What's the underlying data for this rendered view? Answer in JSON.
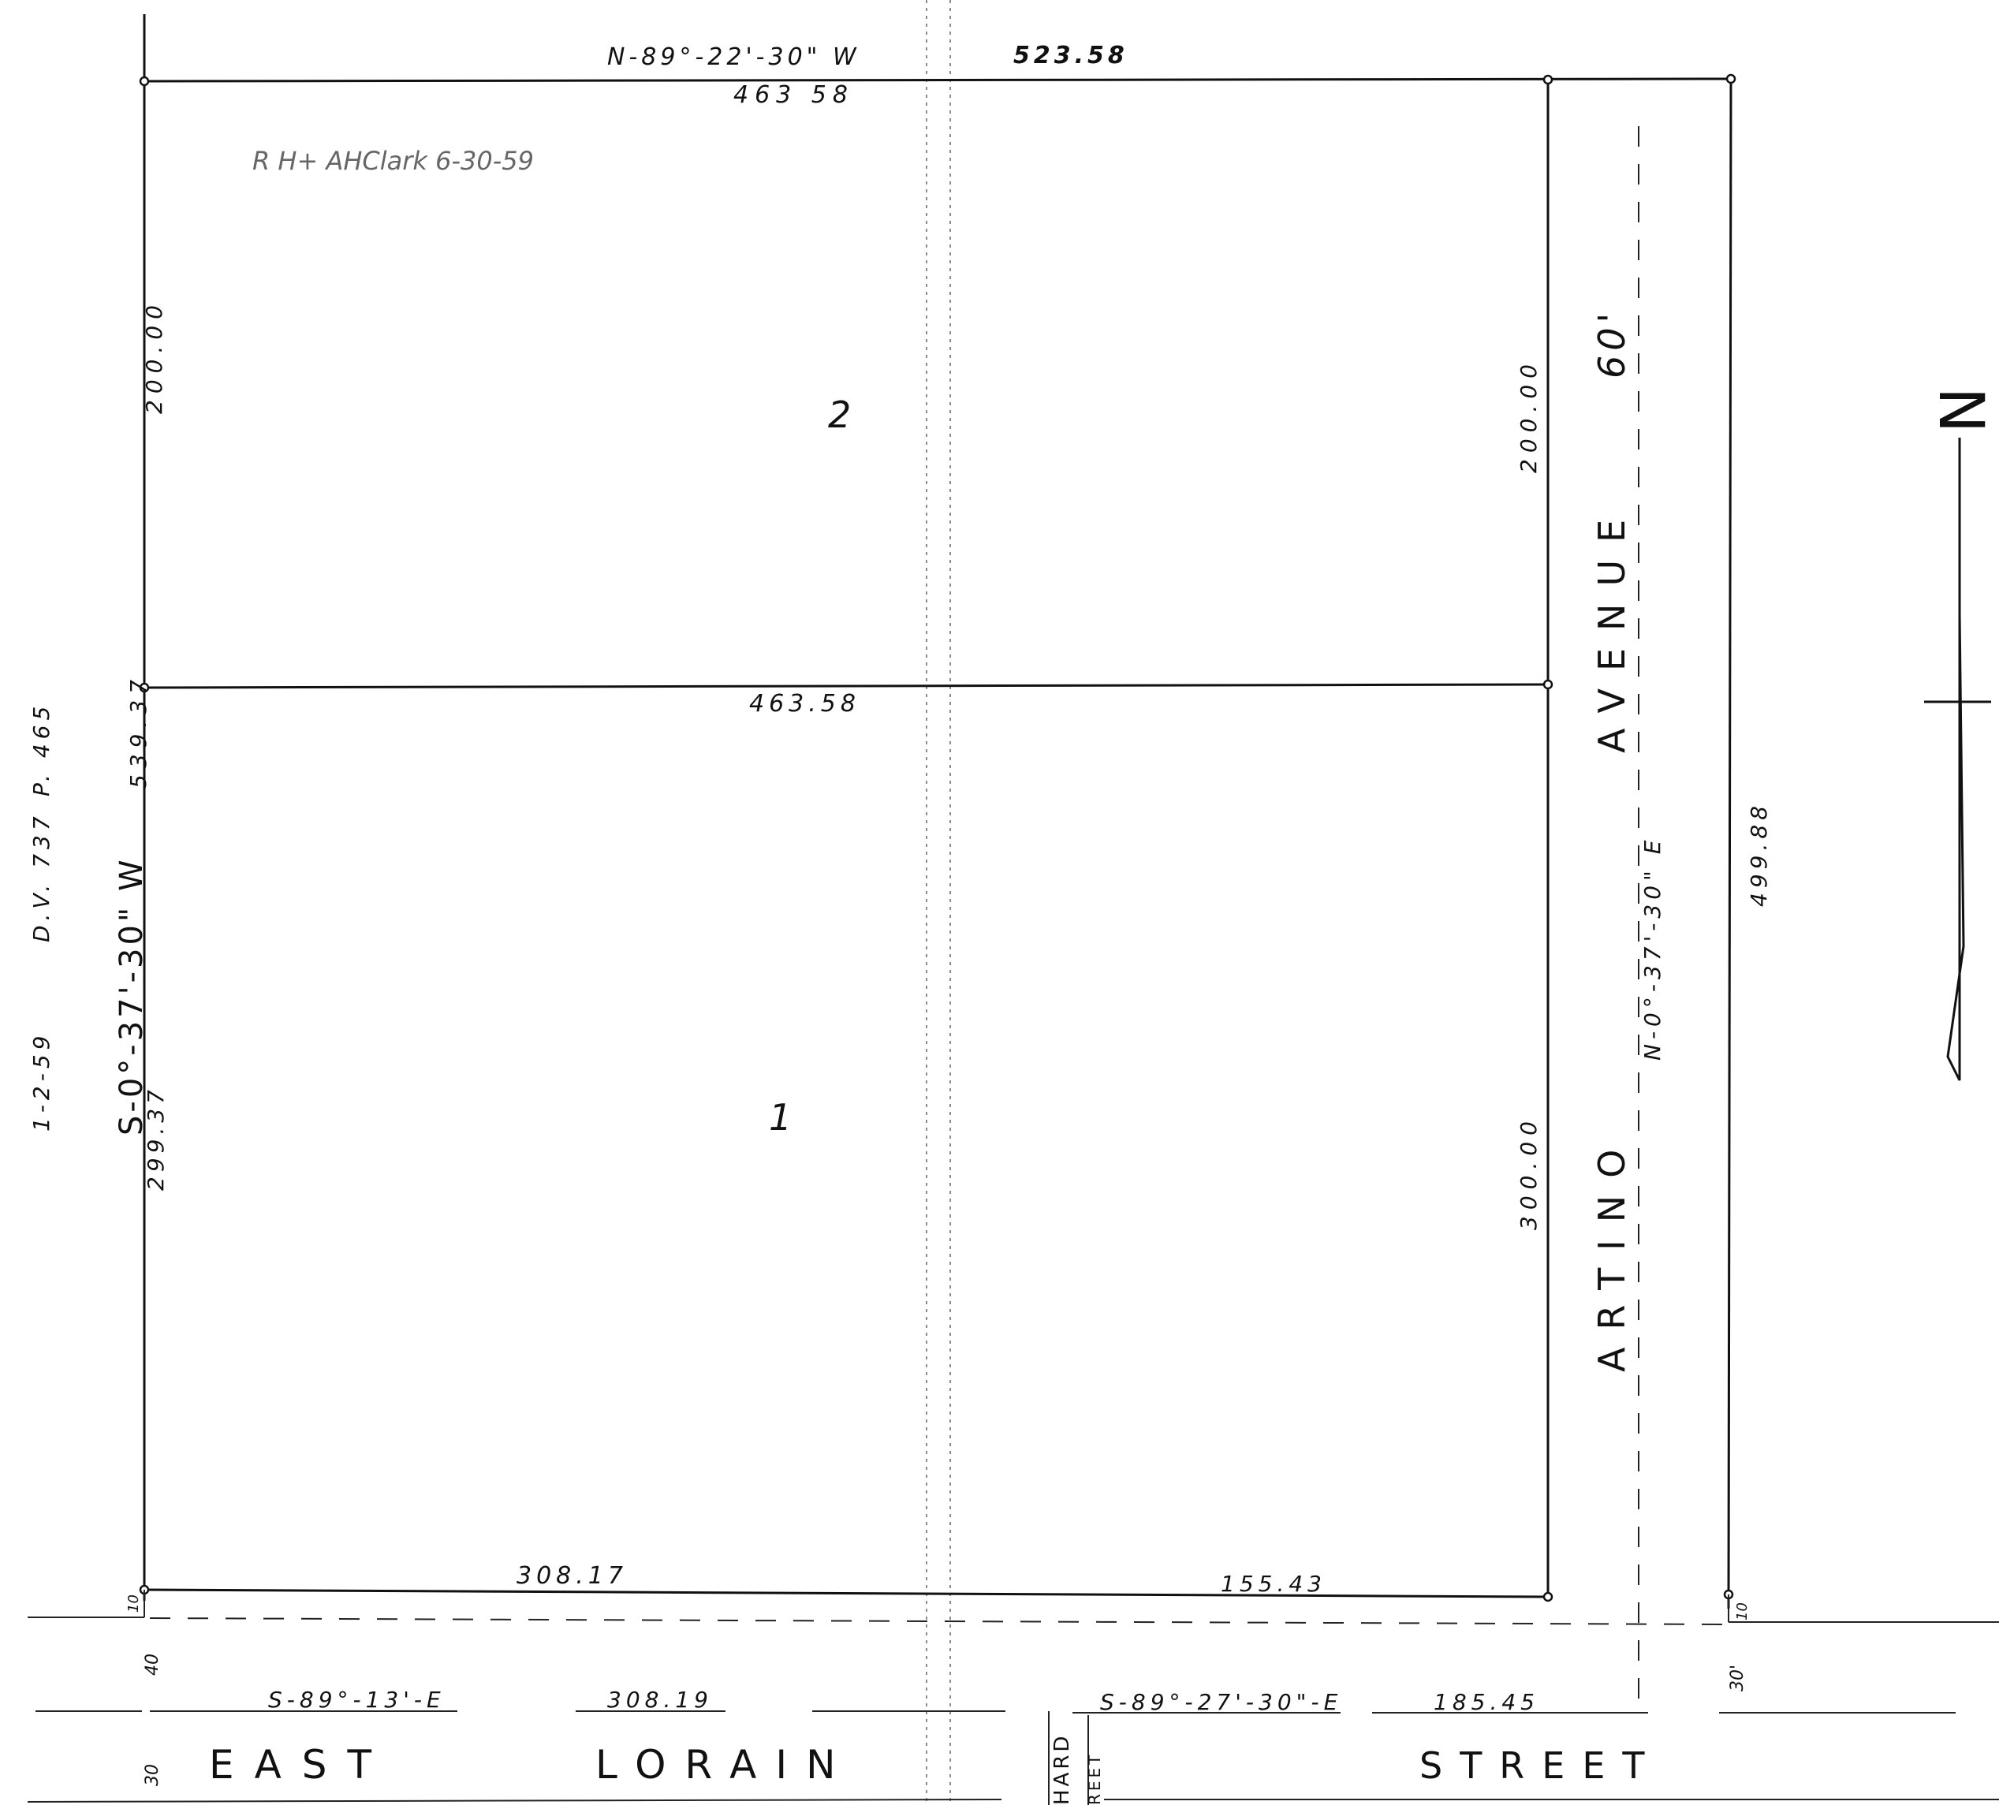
{
  "north_top": {
    "bearing": "N-89°-22'-30\" W",
    "distance": "523.58"
  },
  "lot_top_width": "463 58",
  "recorder_note": "R H+ AHClark 6-30-59",
  "lot_labels": {
    "lot1": "1",
    "lot2": "2"
  },
  "lot_divider_width": "463.58",
  "west_side": {
    "lot2_length": "200.00",
    "total_length": "539.37",
    "bearing": "S-0°-37'-30\" W",
    "lot1_length": "299.37"
  },
  "east_side": {
    "lot2_length": "200.00",
    "lot1_length": "300.00"
  },
  "deed_reference": {
    "date": "1-2-59",
    "volume": "D.V. 737",
    "page": "P. 465"
  },
  "bottom_lot_lines": {
    "west": "308.17",
    "east": "155.43"
  },
  "avenue": {
    "name_part1": "ARTINO",
    "name_part2": "AVENUE",
    "width": "60'",
    "bearing": "N-0°-37'-30\" E",
    "distance": "499.88"
  },
  "offsets": {
    "sw_corner_small": "10",
    "sw_setback": "40",
    "sw_street": "30",
    "se_small": "10",
    "se_setback": "30'"
  },
  "street_line": {
    "west_bearing": "S-89°-13'-E",
    "west_distance": "308.19",
    "east_bearing": "S-89°-27'-30\"-E",
    "east_distance": "185.45"
  },
  "street": {
    "word1": "EAST",
    "word2": "LORAIN",
    "word3": "STREET"
  },
  "side_street": {
    "part1": "HARD",
    "part2": "REET"
  },
  "north_arrow_label": "N"
}
